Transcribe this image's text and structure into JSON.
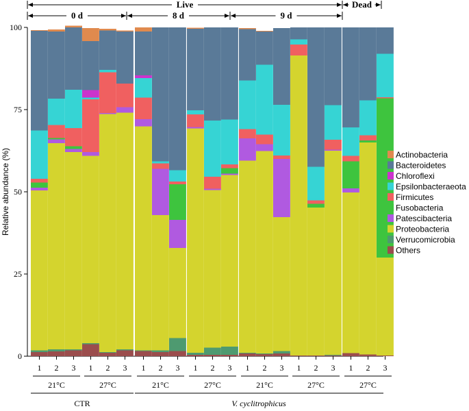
{
  "chart_data": {
    "type": "bar",
    "stacked": true,
    "ylabel": "Relative abundance (%)",
    "ylim": [
      0,
      100
    ],
    "yticks": [
      0,
      25,
      50,
      75,
      100
    ],
    "header": {
      "live": "Live",
      "dead": "Dead",
      "day0": "0 d",
      "day8": "8 d",
      "day9": "9 d"
    },
    "temps": [
      "21°C",
      "27°C",
      "21°C",
      "27°C",
      "21°C",
      "27°C",
      "27°C"
    ],
    "bottom_groups": {
      "ctr": "CTR",
      "vc": "V. cyclitrophicus"
    },
    "categories": [
      "1",
      "2",
      "3",
      "1",
      "2",
      "3",
      "1",
      "2",
      "3",
      "1",
      "2",
      "3",
      "1",
      "2",
      "3",
      "1",
      "2",
      "3",
      "1",
      "2",
      "3"
    ],
    "series": [
      {
        "name": "Others",
        "color": "#9b4d4d",
        "values": [
          1.2,
          1.5,
          1.8,
          3.6,
          1.0,
          1.8,
          1.6,
          1.2,
          1.6,
          0.4,
          0.4,
          0.4,
          0.8,
          0.6,
          0.8,
          0.2,
          0.2,
          0.2,
          0.9,
          0.5,
          0.2
        ]
      },
      {
        "name": "Verrucomicrobia",
        "color": "#4e9a70",
        "values": [
          0.6,
          0.6,
          0.3,
          0.4,
          0.2,
          0.3,
          0.2,
          0.6,
          3.9,
          0.6,
          2.2,
          2.5,
          0.2,
          0.2,
          0.8,
          0,
          0,
          0.2,
          0,
          0,
          0
        ]
      },
      {
        "name": "Proteobacteria",
        "color": "#d4d42e",
        "values": [
          48.6,
          62.7,
          60.0,
          56.9,
          72.4,
          72.0,
          68.1,
          41.1,
          27.4,
          68.3,
          47.9,
          52.2,
          58.5,
          61.6,
          40.7,
          91.3,
          45.0,
          62.1,
          48.9,
          64.5,
          29.8
        ]
      },
      {
        "name": "Patescibacteria",
        "color": "#b05ae0",
        "values": [
          0.8,
          1.1,
          0.9,
          1.2,
          0.4,
          1.6,
          2.2,
          14.1,
          8.6,
          0.4,
          0.4,
          0.4,
          6.8,
          2.1,
          17.7,
          0,
          0,
          0.3,
          1.2,
          0,
          0
        ]
      },
      {
        "name": "Fusobacteria",
        "color": "#3ec43e",
        "values": [
          1.6,
          0.5,
          0.9,
          0,
          0,
          0,
          0,
          0,
          10.8,
          0,
          0,
          1.7,
          0,
          0,
          0,
          0,
          1.2,
          0,
          8.3,
          0.6,
          48.4
        ]
      },
      {
        "name": "Firmicutes",
        "color": "#f06060",
        "values": [
          1.2,
          3.9,
          5.5,
          16.0,
          12.4,
          7.2,
          6.5,
          1.6,
          0.8,
          3.8,
          3.7,
          1.1,
          2.8,
          2.9,
          1.0,
          3.3,
          1.0,
          3.0,
          1.6,
          1.6,
          0.4
        ]
      },
      {
        "name": "Epsilonbacteraeota",
        "color": "#36d4d4",
        "values": [
          14.6,
          8.0,
          11.6,
          0.5,
          0.7,
          0,
          6.0,
          0.7,
          3.5,
          1.3,
          17.1,
          13.7,
          14.8,
          21.2,
          15.5,
          1.6,
          10.2,
          10.6,
          8.7,
          10.6,
          13.2
        ]
      },
      {
        "name": "Chloroflexi",
        "color": "#cc33cc",
        "values": [
          0,
          0,
          0,
          2.3,
          0,
          0,
          0.8,
          0,
          0,
          0,
          0,
          0,
          0,
          0,
          0,
          0,
          0,
          0,
          0,
          0,
          0
        ]
      },
      {
        "name": "Bacteroidetes",
        "color": "#5a7a98",
        "values": [
          30.4,
          20.5,
          19.0,
          14.9,
          12.0,
          15.8,
          13.3,
          40.7,
          43.4,
          24.8,
          28.3,
          28.0,
          15.6,
          10.2,
          23.3,
          3.6,
          42.4,
          23.6,
          30.4,
          22.2,
          8.0
        ]
      },
      {
        "name": "Actinobacteria",
        "color": "#e08a4e",
        "values": [
          0.2,
          0.6,
          0.5,
          4.0,
          0.5,
          0.4,
          1.3,
          0,
          0,
          0.3,
          0,
          0,
          0.3,
          0.2,
          0,
          0,
          0,
          0,
          0,
          0,
          0
        ]
      }
    ],
    "legend_order": [
      "Actinobacteria",
      "Bacteroidetes",
      "Chloroflexi",
      "Epsilonbacteraeota",
      "Firmicutes",
      "Fusobacteria",
      "Patescibacteria",
      "Proteobacteria",
      "Verrucomicrobia",
      "Others"
    ],
    "legend_position": "right"
  }
}
